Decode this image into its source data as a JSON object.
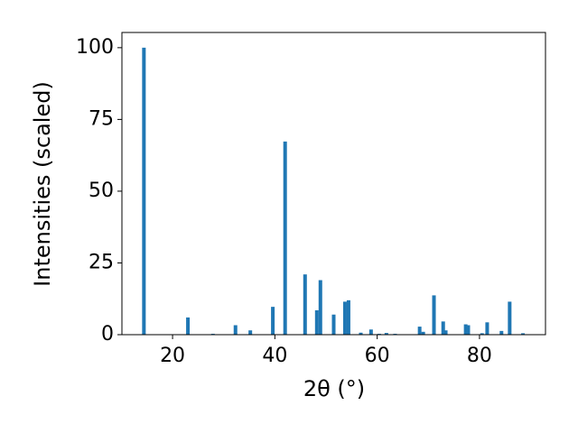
{
  "chart_data": {
    "type": "bar",
    "x_label": "2θ (°)",
    "y_label": "Intensities (scaled)",
    "x": [
      14.4,
      23.0,
      27.9,
      32.3,
      35.2,
      39.6,
      42.0,
      45.9,
      48.2,
      48.9,
      51.5,
      53.7,
      54.4,
      56.8,
      58.8,
      60.4,
      61.8,
      63.5,
      68.3,
      69.0,
      71.1,
      72.9,
      73.4,
      77.3,
      77.8,
      80.5,
      81.5,
      84.3,
      85.9,
      88.5
    ],
    "values": [
      100,
      6,
      0.3,
      3.3,
      1.5,
      9.7,
      67.3,
      21,
      8.5,
      19,
      7,
      11.5,
      12,
      0.7,
      1.8,
      0.3,
      0.6,
      0.3,
      2.8,
      1,
      13.7,
      4.6,
      1.5,
      3.6,
      3.3,
      0.5,
      4.3,
      1.3,
      11.5,
      0.5
    ],
    "color": "#1f77b4",
    "xlim": [
      10.1,
      92.9
    ],
    "ylim": [
      0,
      105.3
    ],
    "xticks": [
      20,
      40,
      60,
      80
    ],
    "yticks": [
      0,
      25,
      50,
      75,
      100
    ]
  }
}
